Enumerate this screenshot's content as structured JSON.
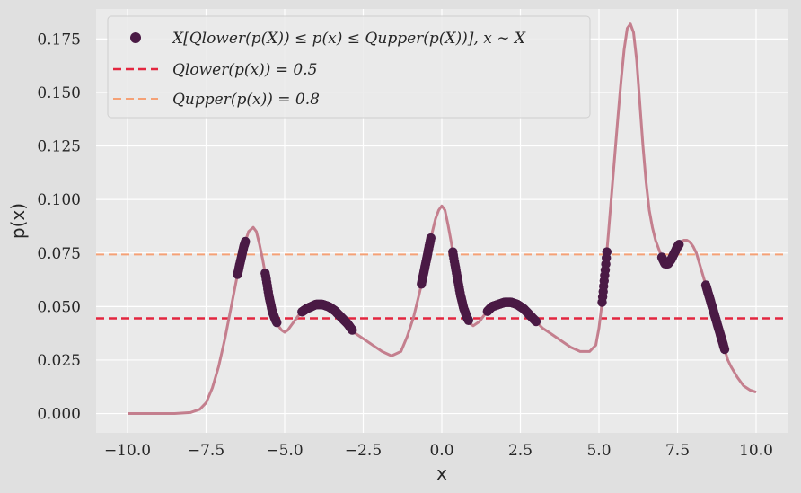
{
  "chart_data": {
    "type": "line",
    "xlabel": "x",
    "ylabel": "p(x)",
    "xlim": [
      -11.0,
      11.0
    ],
    "ylim": [
      -0.009,
      0.189
    ],
    "x_ticks": [
      -10.0,
      -7.5,
      -5.0,
      -2.5,
      0.0,
      2.5,
      5.0,
      7.5,
      10.0
    ],
    "x_tick_labels": [
      "−10.0",
      "−7.5",
      "−5.0",
      "−2.5",
      "0.0",
      "2.5",
      "5.0",
      "7.5",
      "10.0"
    ],
    "y_ticks": [
      0.0,
      0.025,
      0.05,
      0.075,
      0.1,
      0.125,
      0.15,
      0.175
    ],
    "y_tick_labels": [
      "0.000",
      "0.025",
      "0.050",
      "0.075",
      "0.100",
      "0.125",
      "0.150",
      "0.175"
    ],
    "grid": true,
    "legend_position": "top-left",
    "colors": {
      "background": "#e0e0e0",
      "plot_area": "#eaeaea",
      "density_line": "#c47f8e",
      "highlight": "#4a1a45",
      "q_lower": "#e3263f",
      "q_upper": "#f5a176",
      "grid": "#ffffff"
    },
    "series": [
      {
        "kind": "line",
        "x": [
          -10.0,
          -9.0,
          -8.5,
          -8.0,
          -7.7,
          -7.5,
          -7.3,
          -7.1,
          -6.9,
          -6.7,
          -6.5,
          -6.3,
          -6.15,
          -6.0,
          -5.9,
          -5.8,
          -5.7,
          -5.6,
          -5.5,
          -5.4,
          -5.3,
          -5.2,
          -5.1,
          -5.0,
          -4.9,
          -4.8,
          -4.7,
          -4.6,
          -4.5,
          -4.3,
          -4.0,
          -3.8,
          -3.6,
          -3.4,
          -3.2,
          -3.0,
          -2.8,
          -2.5,
          -2.2,
          -1.9,
          -1.6,
          -1.3,
          -1.1,
          -0.9,
          -0.7,
          -0.5,
          -0.35,
          -0.2,
          -0.1,
          0.0,
          0.1,
          0.2,
          0.3,
          0.4,
          0.5,
          0.6,
          0.7,
          0.8,
          0.9,
          1.0,
          1.2,
          1.4,
          1.6,
          1.8,
          2.0,
          2.2,
          2.4,
          2.6,
          2.8,
          3.0,
          3.2,
          3.5,
          3.8,
          4.1,
          4.4,
          4.7,
          4.9,
          5.0,
          5.1,
          5.2,
          5.3,
          5.4,
          5.5,
          5.6,
          5.7,
          5.8,
          5.9,
          6.0,
          6.1,
          6.2,
          6.3,
          6.4,
          6.5,
          6.6,
          6.7,
          6.8,
          6.9,
          7.0,
          7.1,
          7.2,
          7.3,
          7.4,
          7.5,
          7.6,
          7.7,
          7.8,
          7.9,
          8.0,
          8.1,
          8.2,
          8.3,
          8.4,
          8.5,
          8.6,
          8.7,
          8.8,
          8.9,
          9.0,
          9.1,
          9.2,
          9.4,
          9.6,
          9.8,
          10.0
        ],
        "y": [
          0.0,
          0.0,
          0.0,
          0.0005,
          0.002,
          0.005,
          0.012,
          0.022,
          0.035,
          0.05,
          0.065,
          0.078,
          0.085,
          0.087,
          0.085,
          0.079,
          0.072,
          0.064,
          0.055,
          0.048,
          0.044,
          0.041,
          0.039,
          0.038,
          0.039,
          0.041,
          0.043,
          0.045,
          0.047,
          0.049,
          0.051,
          0.051,
          0.05,
          0.048,
          0.045,
          0.042,
          0.038,
          0.035,
          0.032,
          0.029,
          0.027,
          0.029,
          0.036,
          0.045,
          0.057,
          0.071,
          0.082,
          0.091,
          0.095,
          0.097,
          0.095,
          0.088,
          0.08,
          0.071,
          0.063,
          0.055,
          0.049,
          0.045,
          0.042,
          0.041,
          0.043,
          0.047,
          0.05,
          0.051,
          0.052,
          0.052,
          0.051,
          0.049,
          0.046,
          0.043,
          0.04,
          0.037,
          0.034,
          0.031,
          0.029,
          0.029,
          0.032,
          0.04,
          0.052,
          0.067,
          0.084,
          0.102,
          0.12,
          0.138,
          0.155,
          0.17,
          0.18,
          0.182,
          0.178,
          0.165,
          0.145,
          0.125,
          0.108,
          0.095,
          0.087,
          0.081,
          0.077,
          0.073,
          0.07,
          0.07,
          0.072,
          0.075,
          0.078,
          0.08,
          0.081,
          0.081,
          0.08,
          0.078,
          0.075,
          0.07,
          0.065,
          0.06,
          0.055,
          0.05,
          0.045,
          0.04,
          0.035,
          0.03,
          0.025,
          0.022,
          0.017,
          0.013,
          0.011,
          0.01
        ]
      },
      {
        "kind": "scatter",
        "name": "X[Q_lower(p(X)) ≤ p(x) ≤ Q_upper(p(X))], x ~ X",
        "segments_x": [
          [
            -6.5,
            -6.25
          ],
          [
            -5.62,
            -5.25
          ],
          [
            -4.45,
            -2.85
          ],
          [
            -0.65,
            -0.35
          ],
          [
            0.35,
            0.85
          ],
          [
            1.45,
            3.0
          ],
          [
            5.1,
            5.25
          ],
          [
            7.0,
            7.55
          ],
          [
            8.4,
            9.0
          ]
        ]
      },
      {
        "kind": "hline",
        "name": "Q_lower(p(x)) = 0.5",
        "y": 0.0445
      },
      {
        "kind": "hline",
        "name": "Q_upper(p(x)) = 0.8",
        "y": 0.0743
      }
    ],
    "legend": [
      {
        "marker": "dot",
        "label": "X[Qlower(p(X)) ≤ p(x) ≤ Qupper(p(X))], x ∼ X"
      },
      {
        "marker": "dash",
        "label": "Qlower(p(x)) = 0.5"
      },
      {
        "marker": "dash",
        "label": "Qupper(p(x)) = 0.8"
      }
    ]
  }
}
